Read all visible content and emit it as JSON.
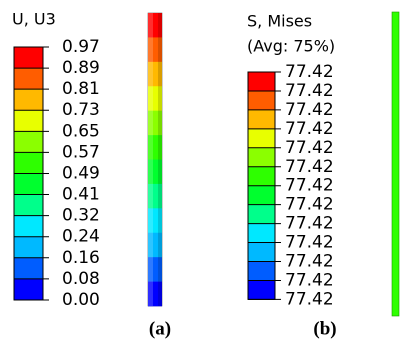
{
  "panels": [
    {
      "title": [
        "U, U3"
      ],
      "labels": [
        "0.97",
        "0.89",
        "0.81",
        "0.73",
        "0.65",
        "0.57",
        "0.49",
        "0.41",
        "0.32",
        "0.24",
        "0.16",
        "0.08",
        "0.00"
      ],
      "colors": [
        "#ff0000",
        "#ff5d00",
        "#ffb900",
        "#e8ff00",
        "#8bff00",
        "#2eff00",
        "#00ff2e",
        "#00ff8b",
        "#00e8ff",
        "#00b9ff",
        "#005dff",
        "#0000ff"
      ],
      "caption": "(a)"
    },
    {
      "title": [
        "S, Mises",
        "(Avg: 75%)"
      ],
      "labels": [
        "77.42",
        "77.42",
        "77.42",
        "77.42",
        "77.42",
        "77.42",
        "77.42",
        "77.42",
        "77.42",
        "77.42",
        "77.42",
        "77.42",
        "77.42"
      ],
      "colors": [
        "#ff0000",
        "#ff5d00",
        "#ffb900",
        "#e8ff00",
        "#8bff00",
        "#2eff00",
        "#00ff2e",
        "#00ff8b",
        "#00e8ff",
        "#00b9ff",
        "#005dff",
        "#0000ff"
      ],
      "caption": "(b)"
    }
  ]
}
